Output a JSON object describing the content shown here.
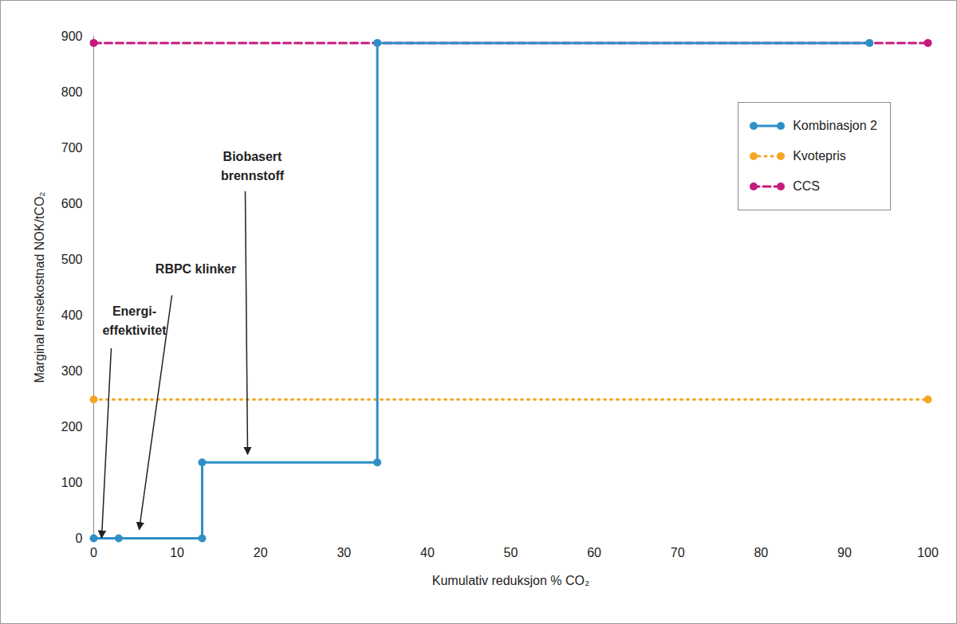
{
  "chart_data": {
    "type": "line",
    "x_label": "Kumulativ reduksjon % CO₂",
    "y_label": "Marginal rensekostnad NOK/tCO₂",
    "xlim": [
      0,
      100
    ],
    "ylim": [
      0,
      900
    ],
    "xticks": [
      0,
      10,
      20,
      30,
      40,
      50,
      60,
      70,
      80,
      90,
      100
    ],
    "yticks": [
      0,
      100,
      200,
      300,
      400,
      500,
      600,
      700,
      800,
      900
    ],
    "grid": false,
    "legend": "upper right",
    "series": [
      {
        "name": "Kombinasjon 2",
        "color": "#2f8fc6",
        "line_style": "solid",
        "marker": "circle",
        "x": [
          0,
          3,
          13,
          13,
          34,
          34,
          93
        ],
        "values": [
          0,
          0,
          0,
          136,
          136,
          888,
          888
        ]
      },
      {
        "name": "Kvotepris",
        "color": "#f5a623",
        "line_style": "dotted",
        "marker": "circle",
        "x": [
          0,
          100
        ],
        "values": [
          249,
          249
        ]
      },
      {
        "name": "CCS",
        "color": "#c5197d",
        "line_style": "dashed",
        "marker": "circle",
        "x": [
          0,
          100
        ],
        "values": [
          888,
          888
        ]
      }
    ],
    "annotations": [
      {
        "text": "Energi-\neffektivitet",
        "x": 1,
        "y": 0
      },
      {
        "text": "RBPC klinker",
        "x": 5.5,
        "y": 15
      },
      {
        "text": "Biobasert\nbrennstoff",
        "x": 18.5,
        "y": 150
      }
    ]
  }
}
